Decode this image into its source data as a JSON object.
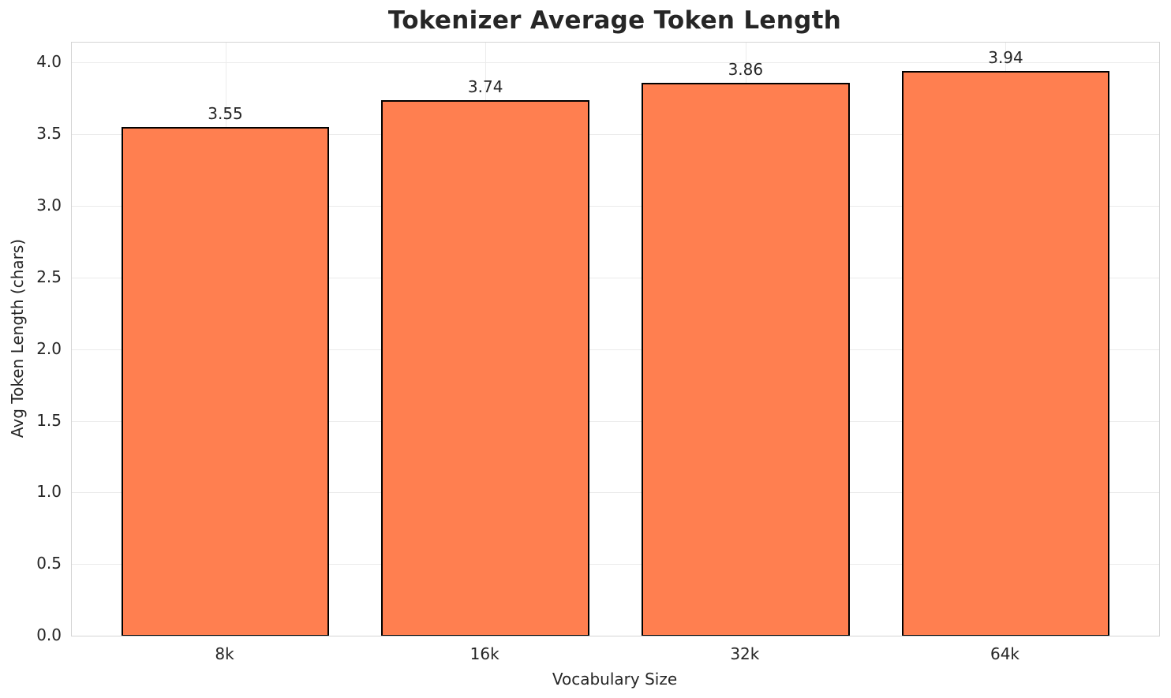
{
  "chart_data": {
    "type": "bar",
    "title": "Tokenizer Average Token Length",
    "xlabel": "Vocabulary Size",
    "ylabel": "Avg Token Length (chars)",
    "categories": [
      "8k",
      "16k",
      "32k",
      "64k"
    ],
    "values": [
      3.55,
      3.74,
      3.86,
      3.94
    ],
    "value_labels": [
      "3.55",
      "3.74",
      "3.86",
      "3.94"
    ],
    "ytick_labels": [
      "0.0",
      "0.5",
      "1.0",
      "1.5",
      "2.0",
      "2.5",
      "3.0",
      "3.5",
      "4.0"
    ],
    "yticks": [
      0.0,
      0.5,
      1.0,
      1.5,
      2.0,
      2.5,
      3.0,
      3.5,
      4.0
    ],
    "ylim": [
      0,
      4.14
    ],
    "grid": true,
    "legend": false,
    "bar_color": "#FF7F50",
    "bar_edge_color": "#000000",
    "grid_color": "#ebebeb",
    "spine_color": "#d4d4d4",
    "text_color": "#262626"
  }
}
